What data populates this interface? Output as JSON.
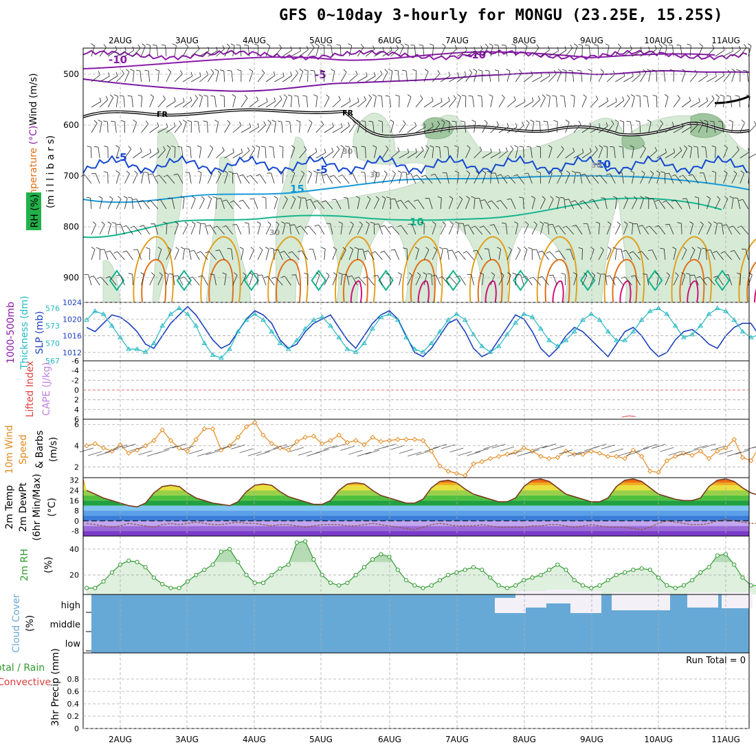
{
  "title": "GFS 0~10day 3-hourly for MONGU (23.25E, 15.25S)",
  "colors": {
    "grid": "#aaaaaa",
    "frame": "#000000",
    "rh": "#d6ead6",
    "rh_dark": "#9fc69f",
    "iso_m10": "#8a1aa8",
    "iso_m5": "#7a16a0",
    "iso_fr": "#000000",
    "iso_5": "#1448d2",
    "iso_10": "#1499d8",
    "iso_15": "#14b48c",
    "iso_20": "#e0a020",
    "iso_25": "#e07018",
    "iso_30": "#d0107a",
    "slp": "#1b3fbf",
    "thick": "#22b8c4",
    "wind10": "#e48a1e",
    "barbs": "#555555",
    "temp_fill": [
      "#7a3cc8",
      "#9a6ad8",
      "#c2a6f0",
      "#3a7cd8",
      "#5aa0e8",
      "#80c4f0",
      "#20a040",
      "#50c040",
      "#9ad048",
      "#e8e040",
      "#f0b020",
      "#f07010",
      "#d84010"
    ],
    "temp_line": "#7a3a20",
    "dew_line": "#8a5a3a",
    "rh2": "#dff0df",
    "rh2_line": "#2e9a2e",
    "cloud": "#67a9d6",
    "cloud_clear": "#f4f0f8"
  },
  "dates": [
    "2AUG",
    "3AUG",
    "4AUG",
    "5AUG",
    "6AUG",
    "7AUG",
    "8AUG",
    "9AUG",
    "10AUG",
    "11AUG"
  ],
  "panels": {
    "upper": {
      "label_wind": "Wind",
      "label_wind_unit": "(m/s)",
      "label_temp": "Temperature",
      "label_temp_unit": "(°C)",
      "label_rh": "RH (%)",
      "unit": "(m i l l i b a r s)",
      "ticks": [
        "500",
        "600",
        "700",
        "800",
        "900"
      ]
    },
    "thick": {
      "label_a": "1000-500mb",
      "label_b": "Thickness (dm)",
      "label_c": "SLP (mb)",
      "ticks_left": [
        "576",
        "573",
        "570",
        "567"
      ],
      "ticks_right": [
        "1024",
        "1020",
        "1016",
        "1012"
      ]
    },
    "cape": {
      "label_a": "Lifted Index",
      "label_b": "CAPE (J/kg)",
      "ticks": [
        "-6",
        "-4",
        "-2",
        "0",
        "2",
        "4",
        "6"
      ]
    },
    "wind10": {
      "label_a": "10m Wind",
      "label_b": "Speed",
      "label_c": "& Barbs",
      "label_d": "(m/s)",
      "ticks": [
        "6",
        "4",
        "2"
      ]
    },
    "temp2m": {
      "label_a": "2m Temp",
      "label_b": "2m DewPt",
      "label_c": "(6hr Min/Max)",
      "label_d": "(°C)",
      "ticks": [
        "32",
        "24",
        "16",
        "8",
        "0",
        "-8"
      ]
    },
    "rh2m": {
      "label_a": "2m RH",
      "label_b": "(%)",
      "ticks": [
        "40",
        "20"
      ]
    },
    "cloud": {
      "label_a": "Cloud Cover",
      "label_b": "(%)",
      "levels": [
        "high",
        "middle",
        "low"
      ]
    },
    "precip": {
      "label_a": "Total / Rain",
      "label_b": "Convective",
      "label_c": "3hr Precip (mm)",
      "ticks": [
        "0.8",
        "0.6",
        "0.4",
        "0.2",
        "0"
      ],
      "run_total": "Run Total = 0"
    }
  },
  "isotherm_labels": [
    "-10",
    "-10",
    "-5",
    "FR",
    "FR",
    "-5",
    "-5",
    "10",
    "15",
    "10",
    "30",
    "30",
    "30",
    "30"
  ],
  "chart_data": [
    {
      "type": "line",
      "title": "1000-500mb Thickness / SLP",
      "x_start_day": 1.5,
      "x_step_days": 0.125,
      "series": [
        {
          "name": "SLP (mb)",
          "values": [
            1018,
            1017,
            1019,
            1021,
            1020.5,
            1019,
            1017,
            1014,
            1013,
            1016,
            1019,
            1021,
            1023,
            1021,
            1018,
            1015,
            1013,
            1014,
            1017,
            1020,
            1022,
            1021,
            1019,
            1015,
            1013,
            1014,
            1017,
            1019,
            1020,
            1021,
            1018,
            1015,
            1013,
            1016,
            1019,
            1021,
            1022,
            1020,
            1016,
            1012,
            1011,
            1013,
            1016,
            1019,
            1020,
            1017,
            1013,
            1011,
            1012,
            1015,
            1018,
            1021,
            1020,
            1017,
            1013,
            1011,
            1013,
            1016,
            1018,
            1017,
            1015,
            1013,
            1011,
            1014,
            1017,
            1018,
            1016,
            1013,
            1011,
            1012,
            1015,
            1017,
            1017.5,
            1016,
            1014,
            1013,
            1016,
            1018,
            1019,
            1019,
            1016,
            1013,
            1011,
            1013,
            1016,
            1018
          ]
        },
        {
          "name": "Thickness (dm)",
          "values": [
            574,
            575.5,
            575,
            573,
            571,
            569,
            569,
            568.5,
            570,
            573,
            575,
            576,
            575,
            573,
            570,
            568,
            567.5,
            569,
            572,
            574,
            575,
            574,
            572,
            570,
            569,
            570.5,
            572.5,
            574,
            574.5,
            573,
            571,
            569,
            568.5,
            570,
            572.5,
            574.5,
            575,
            574,
            571,
            569,
            568.5,
            570,
            572,
            574,
            575,
            574,
            571.5,
            569.5,
            568.5,
            569.5,
            571.5,
            573.5,
            575,
            574.5,
            572.5,
            570.5,
            569.5,
            570.5,
            572,
            574,
            575,
            574,
            572,
            570.5,
            570.5,
            572,
            574,
            575.5,
            576,
            575,
            573,
            571,
            571.5,
            573,
            575,
            576,
            575.5,
            574,
            572,
            571,
            571.5,
            573,
            574,
            574.5,
            574,
            573.5
          ]
        }
      ],
      "ylim_left": [
        567,
        577
      ],
      "ylim_right": [
        1010,
        1024
      ]
    },
    {
      "type": "line",
      "title": "10m Wind Speed",
      "x_start_day": 1.5,
      "x_step_days": 0.125,
      "series": [
        {
          "name": "10m Wind Speed (m/s)",
          "values": [
            4,
            4.2,
            3.8,
            3.5,
            4.1,
            3.3,
            3.6,
            4,
            4.5,
            5.5,
            4.5,
            3.8,
            3.5,
            4.6,
            5.6,
            5.6,
            3.6,
            4,
            4.8,
            5.8,
            6.2,
            5,
            4.2,
            3.8,
            3.6,
            4.4,
            4.8,
            4.9,
            4.2,
            4.5,
            5,
            4.3,
            4.5,
            4.1,
            4.8,
            4.4,
            4.5,
            4.6,
            4.6,
            4.6,
            4.5,
            3.5,
            2.1,
            1.6,
            1.4,
            1.2,
            2.3,
            2.5,
            2.8,
            3,
            3.2,
            3.4,
            3.8,
            3.5,
            3,
            2.8,
            2.9,
            3.5,
            3.2,
            3.2,
            3.5,
            3.3,
            3,
            3,
            2.8,
            3.6,
            3,
            1.6,
            1.5,
            2.6,
            3,
            3.3,
            3.1,
            3.5,
            2.8,
            3.5,
            3.8,
            4.6,
            2.9,
            2.6,
            3.9,
            3.2,
            3.1,
            2.7,
            3.5,
            3.1,
            3.8,
            4.4,
            3.2,
            3.1,
            2.8,
            3.5,
            3.1,
            2.8,
            3.5,
            4
          ]
        }
      ],
      "ylim": [
        1,
        6.5
      ]
    },
    {
      "type": "area",
      "title": "2m Temp / DewPt",
      "x_start_day": 1.5,
      "x_step_days": 0.125,
      "series": [
        {
          "name": "2m Temp (°C)",
          "values": [
            24,
            21,
            18,
            16,
            14,
            12,
            11,
            14,
            22,
            27,
            28,
            27,
            22,
            18,
            16,
            14,
            13,
            12,
            15,
            23,
            28,
            29,
            28,
            23,
            19,
            17,
            15,
            13,
            13,
            16,
            24,
            29,
            30,
            29,
            24,
            20,
            18,
            16,
            14,
            14,
            17,
            26,
            31,
            32,
            30,
            25,
            21,
            19,
            17,
            15,
            15,
            18,
            27,
            32,
            33,
            31,
            26,
            21,
            19,
            17,
            15,
            15,
            18,
            27,
            32,
            33,
            31,
            26,
            21,
            19,
            17,
            16,
            16,
            18,
            27,
            32,
            33,
            31,
            26,
            22,
            20,
            18,
            16,
            16,
            19,
            27,
            32,
            33,
            31,
            26,
            22,
            20,
            18,
            17,
            16,
            20
          ]
        },
        {
          "name": "2m DewPt (°C)",
          "values": [
            -2,
            -3,
            -4,
            -5,
            -4,
            -2,
            -3,
            -4,
            -5,
            -3,
            -2,
            -3,
            -2,
            -1,
            -2,
            -3,
            -3,
            -2,
            -1,
            -2,
            -2,
            -3,
            -4,
            -3,
            -3,
            -4,
            -5,
            -4,
            -3,
            -3,
            -3,
            -4,
            -4,
            -3,
            -2,
            -3,
            -4,
            -5,
            -6,
            -7,
            -5,
            -3,
            -2,
            -3,
            -4,
            -4,
            -4,
            -3,
            -4,
            -5,
            -5,
            -5,
            -5,
            -4,
            -4,
            -3,
            -3,
            -4,
            -5,
            -4,
            -3,
            -4,
            -5,
            -5,
            -5,
            -6,
            -7,
            -5,
            -2,
            0,
            -1,
            -2,
            -3,
            -3,
            -2,
            0,
            1,
            0,
            -1,
            -2,
            -2,
            -1,
            0,
            1,
            0,
            0,
            1,
            2,
            1,
            0,
            -1,
            0,
            1,
            2,
            3
          ]
        }
      ],
      "ylim": [
        -12,
        34
      ]
    },
    {
      "type": "area",
      "title": "2m RH",
      "x_start_day": 1.5,
      "x_step_days": 0.125,
      "series": [
        {
          "name": "2m RH (%)",
          "values": [
            10,
            10,
            15,
            22,
            28,
            31,
            30,
            26,
            18,
            13,
            10,
            10,
            15,
            20,
            24,
            28,
            38,
            40,
            30,
            20,
            14,
            14,
            20,
            25,
            28,
            45,
            46,
            32,
            20,
            14,
            12,
            14,
            20,
            26,
            32,
            36,
            34,
            24,
            16,
            12,
            10,
            12,
            16,
            20,
            22,
            24,
            26,
            24,
            18,
            12,
            10,
            12,
            16,
            18,
            20,
            24,
            28,
            24,
            16,
            12,
            10,
            12,
            16,
            20,
            22,
            24,
            25,
            24,
            18,
            12,
            10,
            12,
            16,
            22,
            26,
            35,
            36,
            28,
            18,
            12,
            12,
            14,
            24,
            30,
            38,
            44,
            42,
            32,
            20,
            14,
            12,
            16,
            22,
            28,
            36,
            44,
            42
          ]
        }
      ],
      "ylim": [
        5,
        50
      ]
    },
    {
      "type": "bar",
      "title": "3hr Precip",
      "x_start_day": 1.5,
      "x_step_days": 0.125,
      "series": [
        {
          "name": "Total / Rain (mm)",
          "values": []
        }
      ],
      "ylim": [
        0,
        1
      ]
    }
  ]
}
